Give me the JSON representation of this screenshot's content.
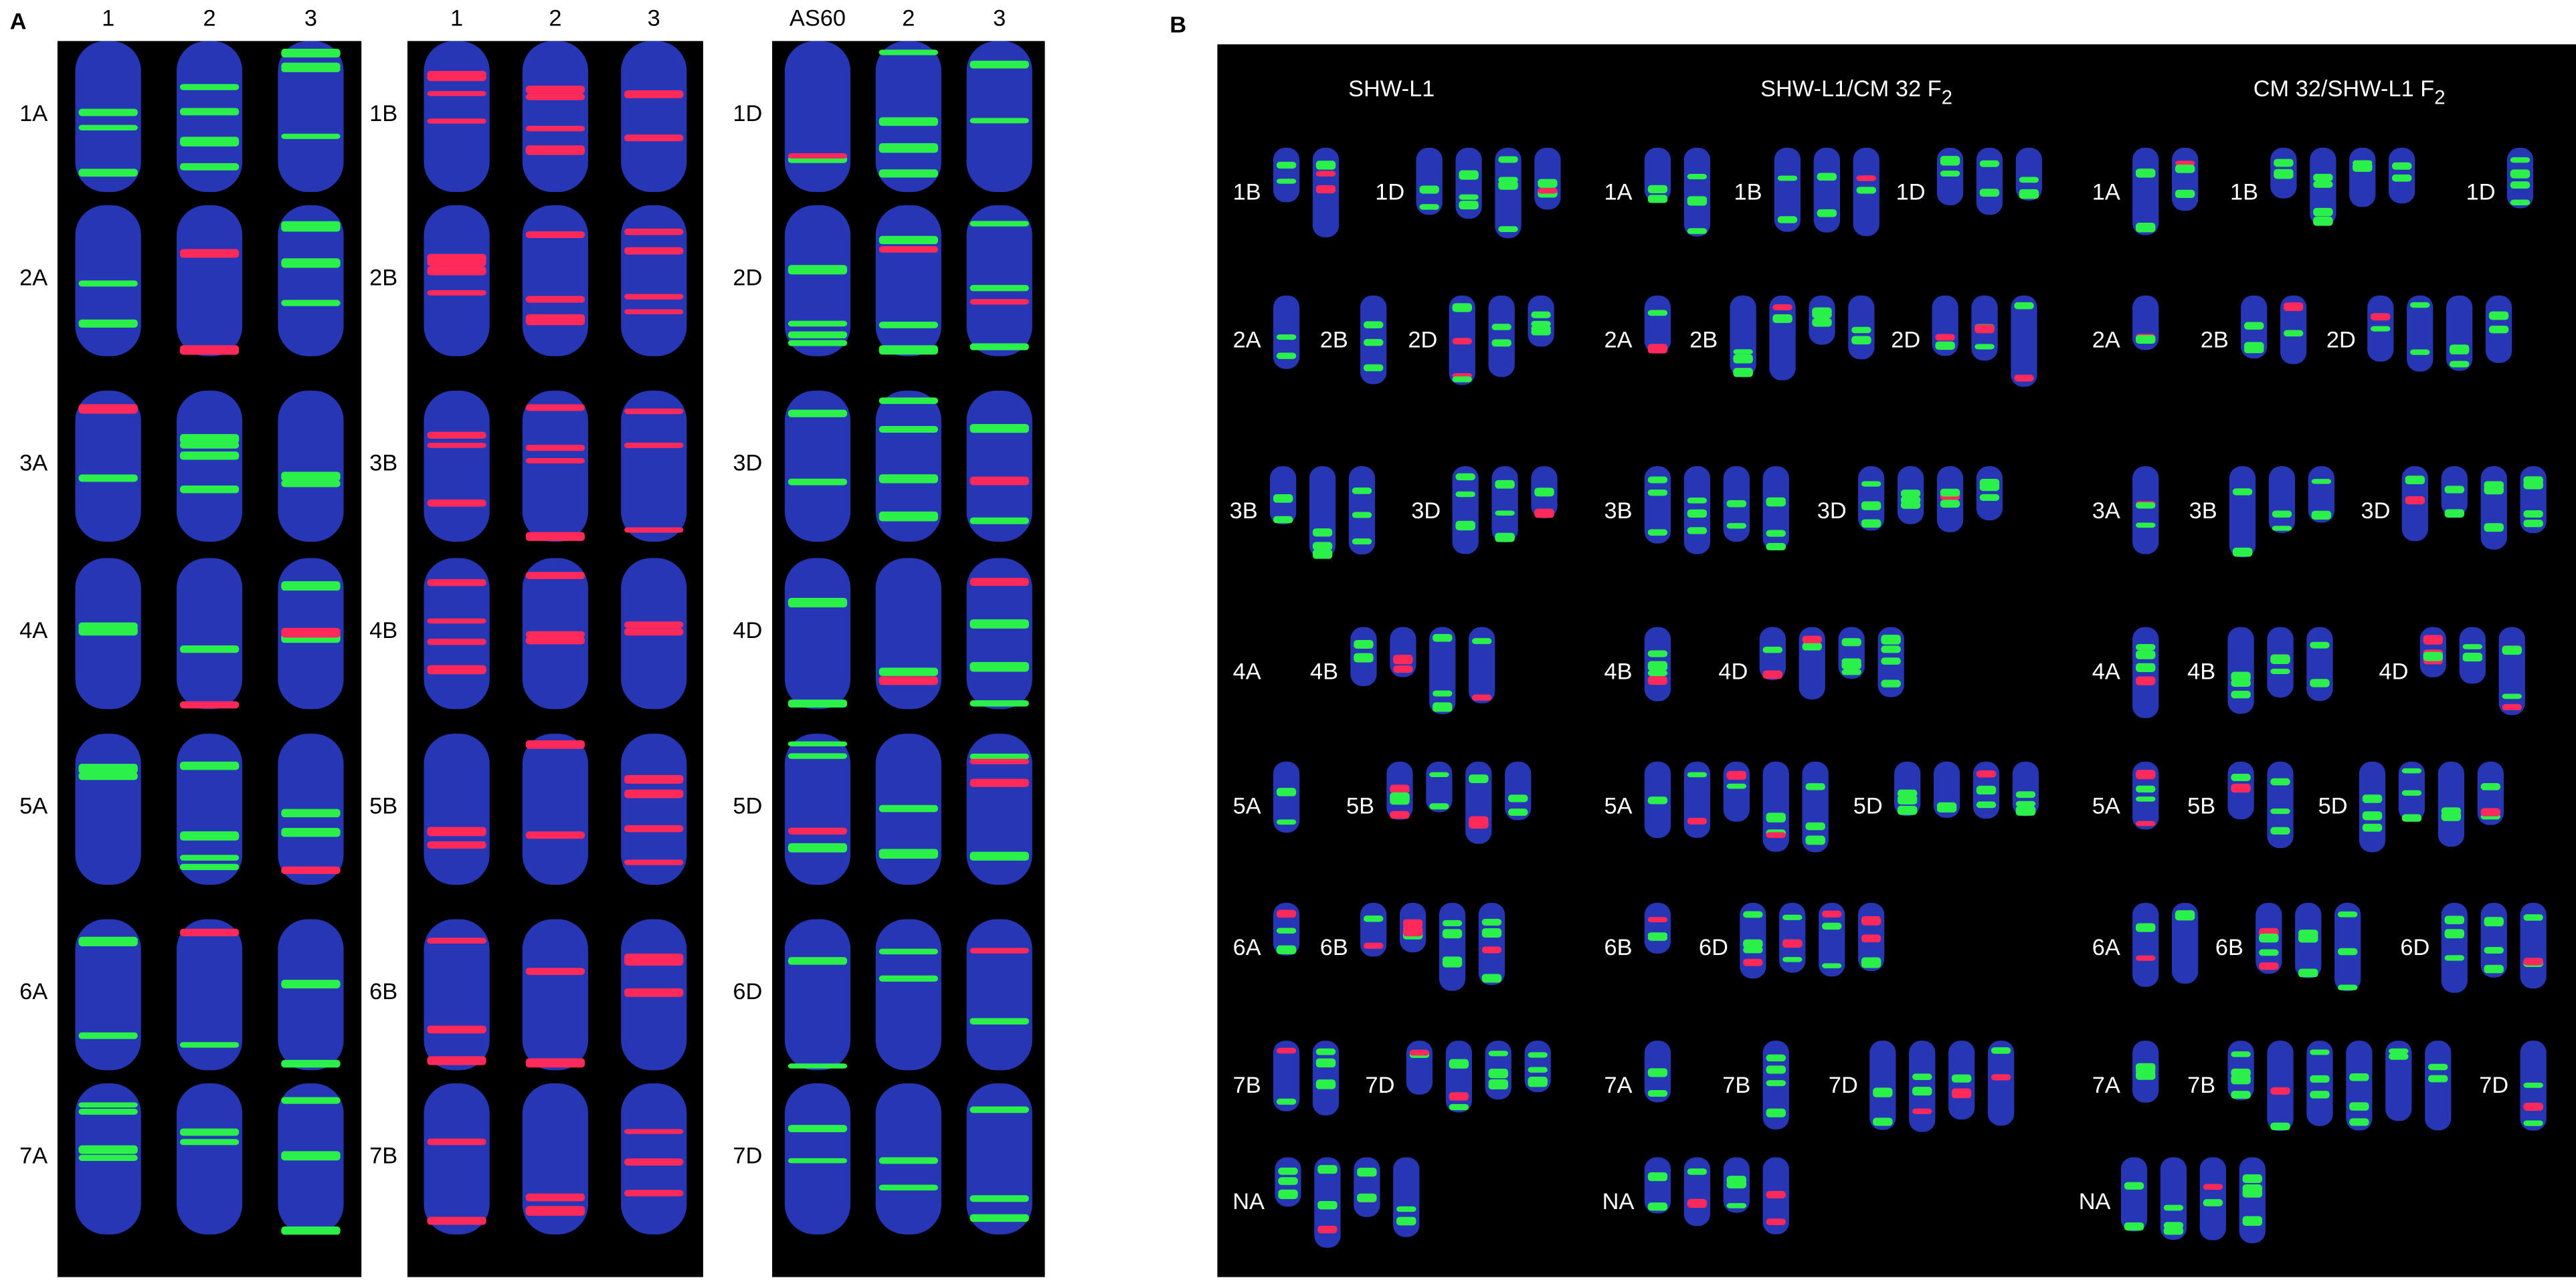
{
  "panel_a": {
    "label": "A",
    "subpanels": [
      {
        "columns": [
          "1",
          "2",
          "3"
        ],
        "rows": [
          "1A",
          "2A",
          "3A",
          "4A",
          "5A",
          "6A",
          "7A"
        ]
      },
      {
        "columns": [
          "1",
          "2",
          "3"
        ],
        "rows": [
          "1B",
          "2B",
          "3B",
          "4B",
          "5B",
          "6B",
          "7B"
        ]
      },
      {
        "columns": [
          "AS60",
          "2",
          "3"
        ],
        "rows": [
          "1D",
          "2D",
          "3D",
          "4D",
          "5D",
          "6D",
          "7D"
        ]
      }
    ]
  },
  "panel_b": {
    "label": "B",
    "groups": [
      {
        "title": {
          "text": "SHW-L1"
        },
        "rows": [
          [
            "1B",
            "1D"
          ],
          [
            "2A",
            "2B",
            "2D"
          ],
          [
            "3B",
            "3D"
          ],
          [
            "4A",
            "4B"
          ],
          [
            "5A",
            "5B"
          ],
          [
            "6A",
            "6B"
          ],
          [
            "7B",
            "7D"
          ],
          [
            "NA"
          ]
        ]
      },
      {
        "title": {
          "text": "SHW-L1/CM 32 F",
          "subscript": "2"
        },
        "rows": [
          [
            "1A",
            "1B",
            "1D"
          ],
          [
            "2A",
            "2B",
            "2D"
          ],
          [
            "3B",
            "3D"
          ],
          [
            "4B",
            "4D"
          ],
          [
            "5A",
            "5D"
          ],
          [
            "6B",
            "6D"
          ],
          [
            "7A",
            "7B",
            "7D"
          ],
          [
            "NA"
          ]
        ]
      },
      {
        "title": {
          "text": "CM 32/SHW-L1 F",
          "subscript": "2"
        },
        "rows": [
          [
            "1A",
            "1B",
            "1D"
          ],
          [
            "2A",
            "2B",
            "2D"
          ],
          [
            "3A",
            "3B",
            "3D"
          ],
          [
            "4A",
            "4B",
            "4D"
          ],
          [
            "5A",
            "5B",
            "5D"
          ],
          [
            "6A",
            "6B",
            "6D"
          ],
          [
            "7A",
            "7B",
            "7D"
          ],
          [
            "NA"
          ]
        ]
      }
    ]
  }
}
